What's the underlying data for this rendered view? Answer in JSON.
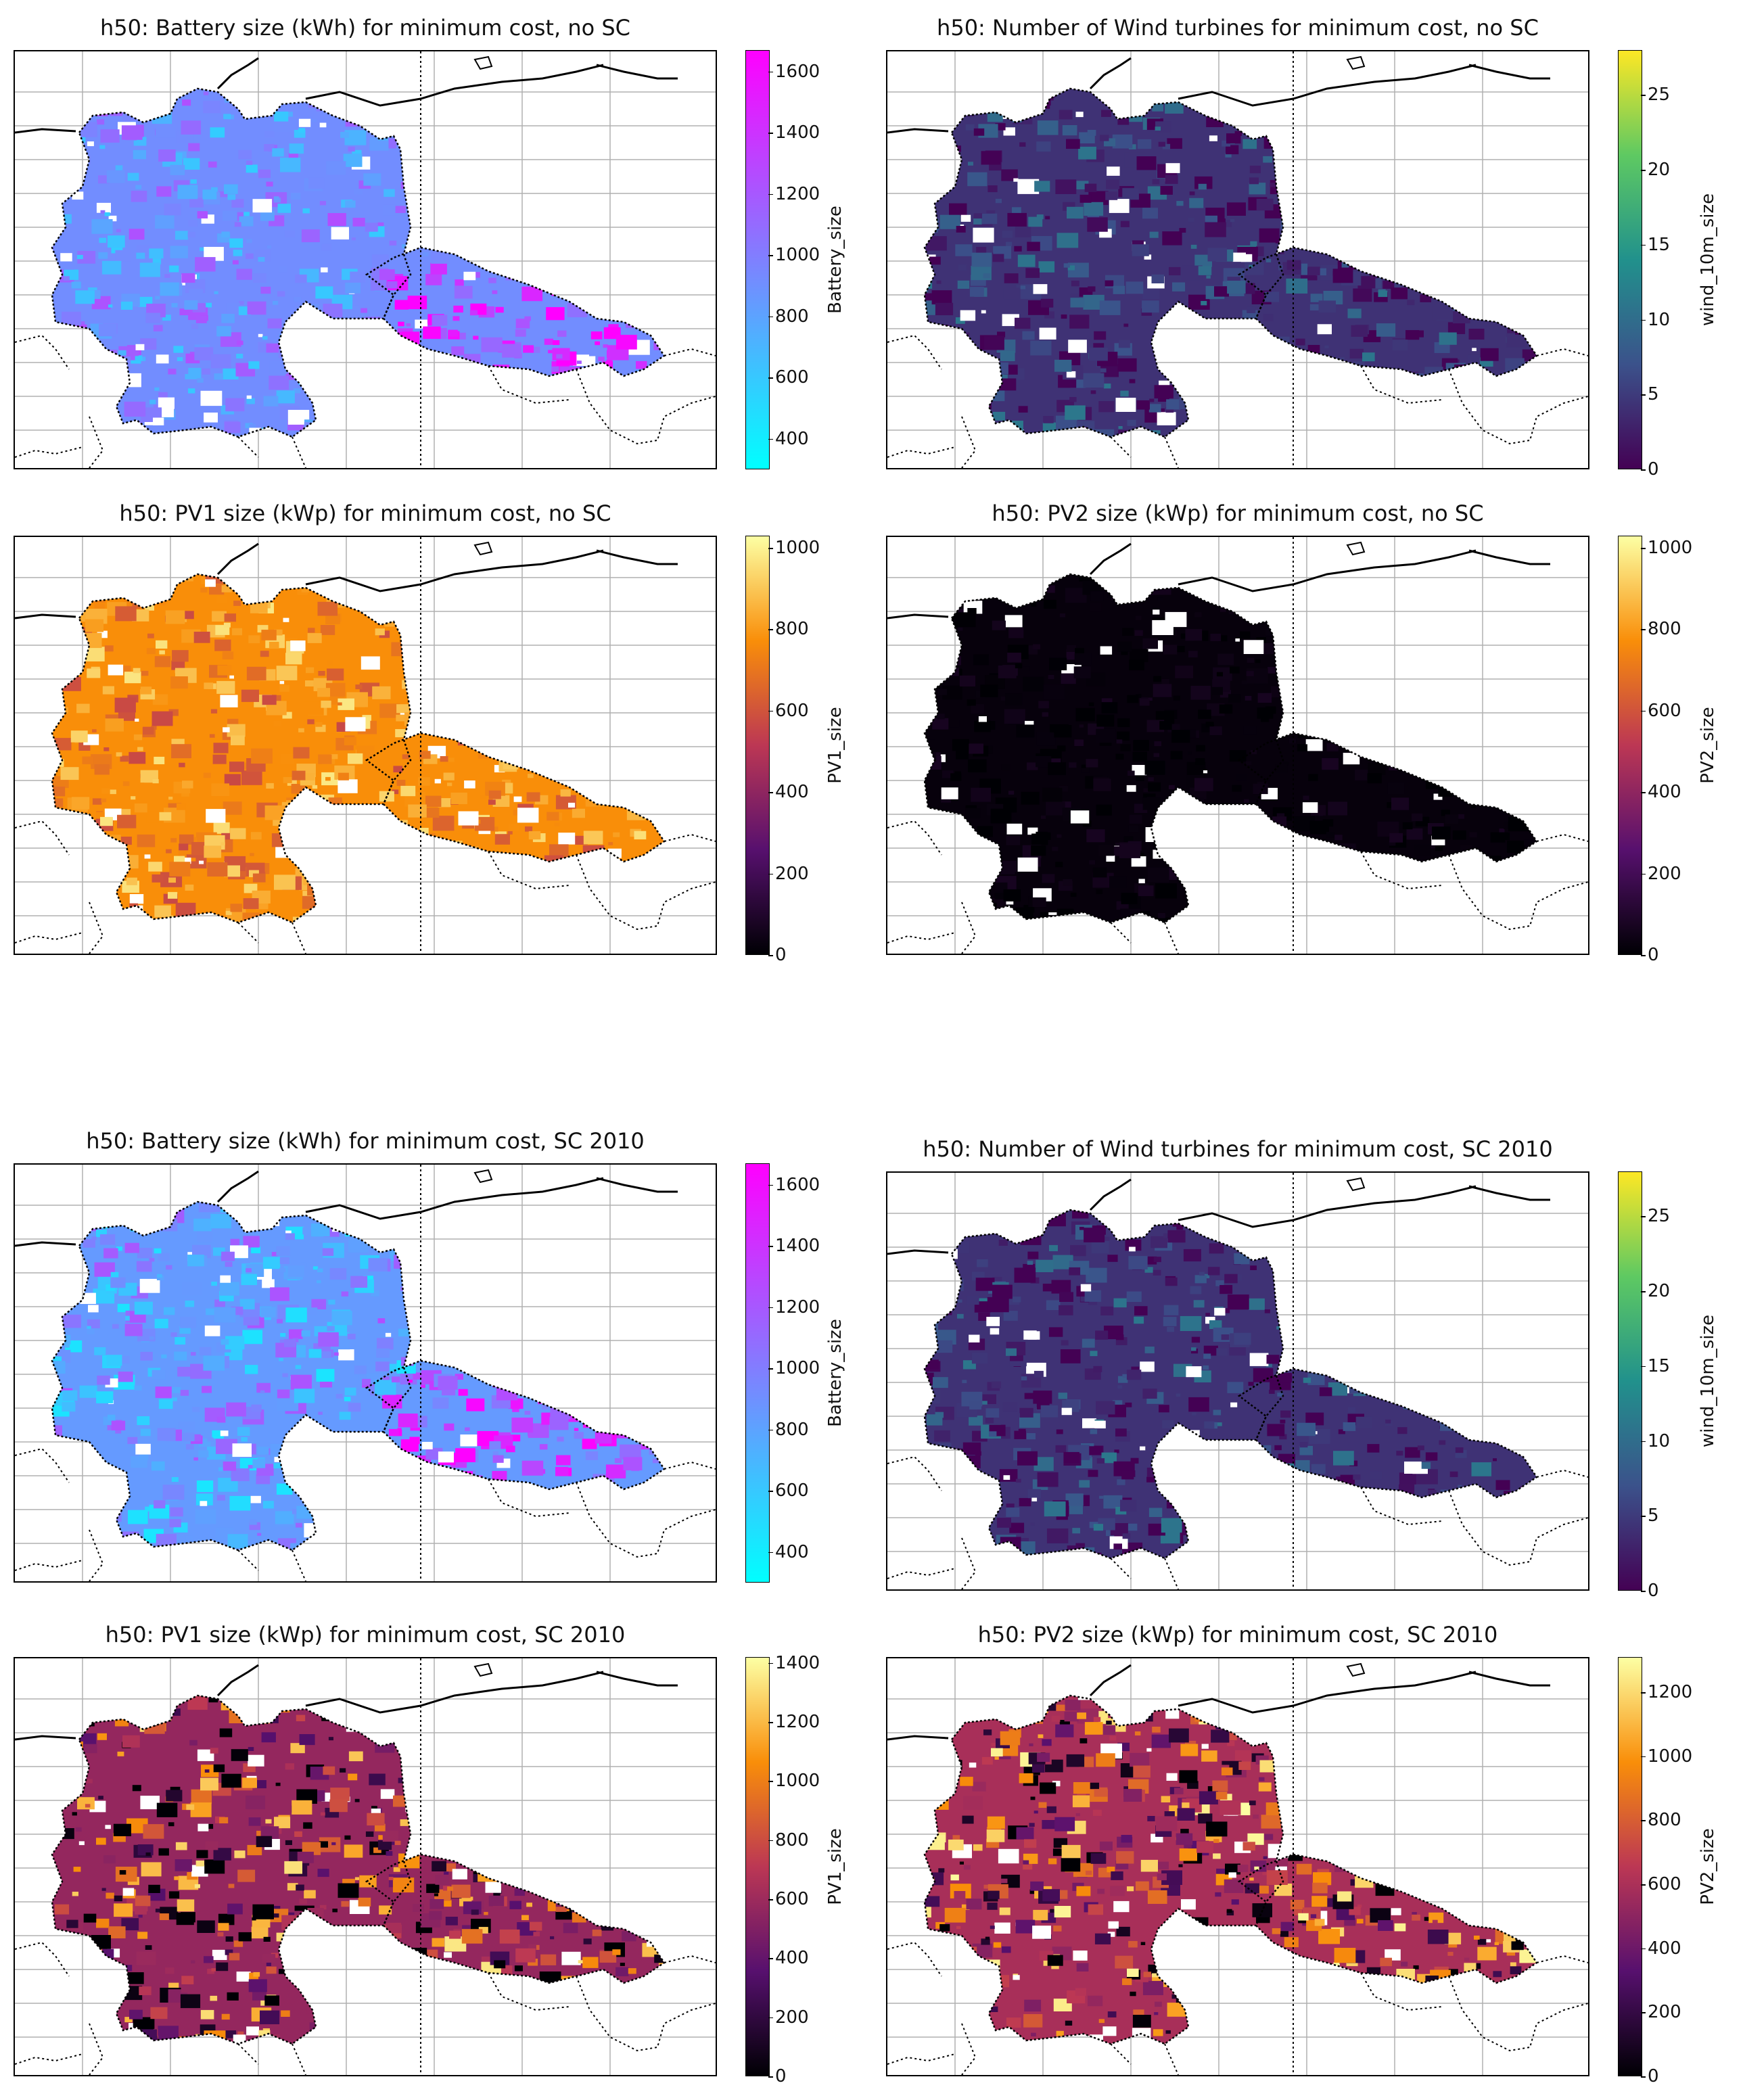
{
  "panels": [
    {
      "title": "h50: Battery size (kWh) for minimum cost, no SC",
      "cbar_label": "Battery_size",
      "cmap": "cool",
      "range": [
        300,
        1670
      ],
      "ticks": [
        "400",
        "600",
        "800",
        "1000",
        "1200",
        "1400",
        "1600"
      ],
      "tick_values": [
        400,
        600,
        800,
        1000,
        1200,
        1400,
        1600
      ]
    },
    {
      "title": "h50: Number of Wind turbines for minimum cost, no SC",
      "cbar_label": "wind_10m_size",
      "cmap": "viridis",
      "range": [
        0,
        28
      ],
      "ticks": [
        "0",
        "5",
        "10",
        "15",
        "20",
        "25"
      ],
      "tick_values": [
        0,
        5,
        10,
        15,
        20,
        25
      ]
    },
    {
      "title": "h50: PV1 size (kWp) for minimum cost, no SC",
      "cbar_label": "PV1_size",
      "cmap": "inferno",
      "range": [
        0,
        1030
      ],
      "ticks": [
        "0",
        "200",
        "400",
        "600",
        "800",
        "1000"
      ],
      "tick_values": [
        0,
        200,
        400,
        600,
        800,
        1000
      ]
    },
    {
      "title": "h50: PV2 size (kWp) for minimum cost, no SC",
      "cbar_label": "PV2_size",
      "cmap": "inferno",
      "range": [
        0,
        1030
      ],
      "ticks": [
        "0",
        "200",
        "400",
        "600",
        "800",
        "1000"
      ],
      "tick_values": [
        0,
        200,
        400,
        600,
        800,
        1000
      ]
    },
    {
      "title": "h50: Battery size (kWh) for minimum cost, SC 2010",
      "cbar_label": "Battery_size",
      "cmap": "cool",
      "range": [
        300,
        1670
      ],
      "ticks": [
        "400",
        "600",
        "800",
        "1000",
        "1200",
        "1400",
        "1600"
      ],
      "tick_values": [
        400,
        600,
        800,
        1000,
        1200,
        1400,
        1600
      ]
    },
    {
      "title": "h50: Number of Wind turbines for minimum cost, SC 2010",
      "cbar_label": "wind_10m_size",
      "cmap": "viridis",
      "range": [
        0,
        28
      ],
      "ticks": [
        "0",
        "5",
        "10",
        "15",
        "20",
        "25"
      ],
      "tick_values": [
        0,
        5,
        10,
        15,
        20,
        25
      ]
    },
    {
      "title": "h50: PV1 size (kWp) for minimum cost, SC 2010",
      "cbar_label": "PV1_size",
      "cmap": "inferno",
      "range": [
        0,
        1420
      ],
      "ticks": [
        "0",
        "200",
        "400",
        "600",
        "800",
        "1000",
        "1200",
        "1400"
      ],
      "tick_values": [
        0,
        200,
        400,
        600,
        800,
        1000,
        1200,
        1400
      ]
    },
    {
      "title": "h50: PV2 size (kWp) for minimum cost, SC 2010",
      "cbar_label": "PV2_size",
      "cmap": "inferno",
      "range": [
        0,
        1310
      ],
      "ticks": [
        "0",
        "200",
        "400",
        "600",
        "800",
        "1000",
        "1200"
      ],
      "tick_values": [
        0,
        200,
        400,
        600,
        800,
        1000,
        1200
      ]
    }
  ],
  "colormaps": {
    "cool": [
      "#00ffff",
      "#3fc0ff",
      "#7f80ff",
      "#bf40ff",
      "#ff00ff"
    ],
    "viridis": [
      "#440154",
      "#3b528b",
      "#21918c",
      "#5ec962",
      "#fde725"
    ],
    "inferno": [
      "#000004",
      "#57106e",
      "#bc3754",
      "#f98e09",
      "#fcffa4"
    ]
  }
}
